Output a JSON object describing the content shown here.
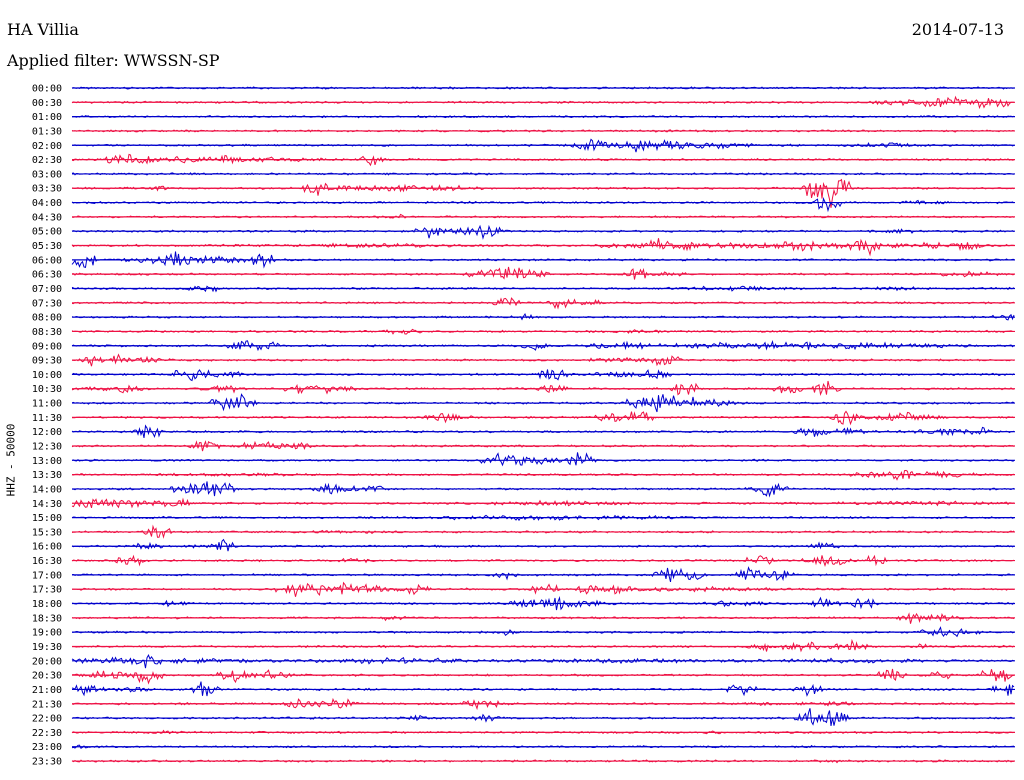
{
  "header": {
    "station": "HA Villia",
    "date": "2014-07-13",
    "filter": "Applied filter: WWSSN-SP"
  },
  "chart_data": {
    "type": "line",
    "title": "HA Villia",
    "ylabel": "HHZ - 50000",
    "colors": {
      "even_rows": "#0000cc",
      "odd_rows": "#ee1144"
    },
    "grid": false,
    "rows": [
      {
        "time": "00:00",
        "bursts": []
      },
      {
        "time": "00:30",
        "bursts": [
          [
            0.86,
            0.01,
            4
          ],
          [
            0.93,
            0.06,
            7
          ],
          [
            0.97,
            0.02,
            9
          ]
        ]
      },
      {
        "time": "01:00",
        "bursts": []
      },
      {
        "time": "01:30",
        "bursts": []
      },
      {
        "time": "02:00",
        "bursts": [
          [
            0.55,
            0.01,
            9
          ],
          [
            0.57,
            0.05,
            5
          ],
          [
            0.6,
            0.01,
            10
          ],
          [
            0.63,
            0.01,
            9
          ],
          [
            0.66,
            0.06,
            5
          ],
          [
            0.86,
            0.05,
            3
          ]
        ]
      },
      {
        "time": "02:30",
        "bursts": [
          [
            0.06,
            0.02,
            8
          ],
          [
            0.11,
            0.08,
            4
          ],
          [
            0.16,
            0.02,
            6
          ],
          [
            0.2,
            0.1,
            3
          ],
          [
            0.32,
            0.01,
            7
          ]
        ]
      },
      {
        "time": "03:00",
        "bursts": []
      },
      {
        "time": "03:30",
        "bursts": [
          [
            0.09,
            0.01,
            5
          ],
          [
            0.26,
            0.01,
            10
          ],
          [
            0.3,
            0.04,
            4
          ],
          [
            0.35,
            0.01,
            8
          ],
          [
            0.4,
            0.03,
            4
          ],
          [
            0.8,
            0.02,
            25
          ]
        ]
      },
      {
        "time": "04:00",
        "bursts": [
          [
            0.8,
            0.01,
            12
          ],
          [
            0.9,
            0.03,
            3
          ]
        ]
      },
      {
        "time": "04:30",
        "bursts": [
          [
            0.34,
            0.01,
            4
          ]
        ]
      },
      {
        "time": "05:00",
        "bursts": [
          [
            0.38,
            0.01,
            8
          ],
          [
            0.42,
            0.04,
            5
          ],
          [
            0.44,
            0.01,
            10
          ],
          [
            0.88,
            0.03,
            3
          ]
        ]
      },
      {
        "time": "05:30",
        "bursts": [
          [
            0.3,
            0.15,
            3
          ],
          [
            0.62,
            0.01,
            9
          ],
          [
            0.66,
            0.1,
            5
          ],
          [
            0.77,
            0.06,
            7
          ],
          [
            0.84,
            0.01,
            14
          ],
          [
            0.9,
            0.06,
            5
          ],
          [
            0.95,
            0.01,
            8
          ]
        ]
      },
      {
        "time": "06:00",
        "bursts": [
          [
            0.01,
            0.01,
            12
          ],
          [
            0.11,
            0.01,
            14
          ],
          [
            0.13,
            0.07,
            6
          ],
          [
            0.2,
            0.01,
            10
          ]
        ]
      },
      {
        "time": "06:30",
        "bursts": [
          [
            0.46,
            0.04,
            10
          ],
          [
            0.6,
            0.01,
            8
          ],
          [
            0.63,
            0.03,
            3
          ],
          [
            0.95,
            0.03,
            4
          ]
        ]
      },
      {
        "time": "07:00",
        "bursts": [
          [
            0.14,
            0.01,
            6
          ],
          [
            0.7,
            0.08,
            3
          ],
          [
            0.87,
            0.03,
            3
          ]
        ]
      },
      {
        "time": "07:30",
        "bursts": [
          [
            0.46,
            0.01,
            8
          ],
          [
            0.52,
            0.01,
            8
          ],
          [
            0.55,
            0.01,
            5
          ]
        ]
      },
      {
        "time": "08:00",
        "bursts": [
          [
            0.48,
            0.01,
            4
          ],
          [
            0.99,
            0.01,
            4
          ]
        ]
      },
      {
        "time": "08:30",
        "bursts": [
          [
            0.35,
            0.02,
            4
          ],
          [
            0.6,
            0.02,
            3
          ]
        ]
      },
      {
        "time": "09:00",
        "bursts": [
          [
            0.18,
            0.01,
            9
          ],
          [
            0.2,
            0.02,
            7
          ],
          [
            0.49,
            0.01,
            7
          ],
          [
            0.56,
            0.02,
            4
          ],
          [
            0.59,
            0.01,
            7
          ],
          [
            0.77,
            0.18,
            5
          ]
        ]
      },
      {
        "time": "09:30",
        "bursts": [
          [
            0.02,
            0.01,
            7
          ],
          [
            0.05,
            0.01,
            6
          ],
          [
            0.08,
            0.02,
            4
          ],
          [
            0.59,
            0.04,
            4
          ],
          [
            0.63,
            0.01,
            10
          ]
        ]
      },
      {
        "time": "10:00",
        "bursts": [
          [
            0.13,
            0.02,
            8
          ],
          [
            0.17,
            0.01,
            4
          ],
          [
            0.51,
            0.01,
            10
          ],
          [
            0.59,
            0.04,
            4
          ],
          [
            0.62,
            0.01,
            7
          ]
        ]
      },
      {
        "time": "10:30",
        "bursts": [
          [
            0.01,
            0.06,
            3
          ],
          [
            0.06,
            0.01,
            7
          ],
          [
            0.16,
            0.02,
            5
          ],
          [
            0.24,
            0.01,
            6
          ],
          [
            0.27,
            0.03,
            5
          ],
          [
            0.51,
            0.01,
            6
          ],
          [
            0.65,
            0.01,
            9
          ],
          [
            0.76,
            0.01,
            8
          ],
          [
            0.8,
            0.01,
            10
          ]
        ]
      },
      {
        "time": "11:00",
        "bursts": [
          [
            0.16,
            0.01,
            10
          ],
          [
            0.18,
            0.01,
            12
          ],
          [
            0.63,
            0.04,
            12
          ],
          [
            0.68,
            0.03,
            4
          ]
        ]
      },
      {
        "time": "11:30",
        "bursts": [
          [
            0.4,
            0.02,
            6
          ],
          [
            0.57,
            0.01,
            8
          ],
          [
            0.6,
            0.01,
            9
          ],
          [
            0.82,
            0.01,
            10
          ],
          [
            0.88,
            0.04,
            6
          ]
        ]
      },
      {
        "time": "12:00",
        "bursts": [
          [
            0.08,
            0.01,
            10
          ],
          [
            0.79,
            0.02,
            6
          ],
          [
            0.82,
            0.05,
            4
          ],
          [
            0.92,
            0.04,
            5
          ],
          [
            0.96,
            0.01,
            8
          ]
        ]
      },
      {
        "time": "12:30",
        "bursts": [
          [
            0.14,
            0.01,
            9
          ],
          [
            0.2,
            0.03,
            5
          ],
          [
            0.24,
            0.01,
            5
          ]
        ]
      },
      {
        "time": "13:00",
        "bursts": [
          [
            0.45,
            0.01,
            10
          ],
          [
            0.47,
            0.01,
            8
          ],
          [
            0.49,
            0.05,
            5
          ],
          [
            0.54,
            0.01,
            10
          ]
        ]
      },
      {
        "time": "13:30",
        "bursts": [
          [
            0.17,
            0.12,
            2
          ],
          [
            0.85,
            0.02,
            5
          ],
          [
            0.88,
            0.01,
            9
          ],
          [
            0.92,
            0.04,
            4
          ]
        ]
      },
      {
        "time": "14:00",
        "bursts": [
          [
            0.14,
            0.03,
            12
          ],
          [
            0.27,
            0.01,
            9
          ],
          [
            0.29,
            0.04,
            4
          ],
          [
            0.32,
            0.01,
            7
          ],
          [
            0.74,
            0.02,
            8
          ]
        ]
      },
      {
        "time": "14:30",
        "bursts": [
          [
            0.01,
            0.1,
            7
          ],
          [
            0.11,
            0.01,
            8
          ],
          [
            0.51,
            0.1,
            3
          ],
          [
            0.9,
            0.1,
            3
          ]
        ]
      },
      {
        "time": "15:00",
        "bursts": [
          [
            0.5,
            0.2,
            3
          ]
        ]
      },
      {
        "time": "15:30",
        "bursts": [
          [
            0.09,
            0.01,
            10
          ],
          [
            0.28,
            0.1,
            2
          ]
        ]
      },
      {
        "time": "16:00",
        "bursts": [
          [
            0.08,
            0.01,
            5
          ],
          [
            0.13,
            0.02,
            3
          ],
          [
            0.16,
            0.01,
            8
          ],
          [
            0.8,
            0.01,
            6
          ]
        ]
      },
      {
        "time": "16:30",
        "bursts": [
          [
            0.06,
            0.01,
            10
          ],
          [
            0.3,
            0.02,
            3
          ],
          [
            0.73,
            0.01,
            9
          ],
          [
            0.8,
            0.02,
            7
          ],
          [
            0.85,
            0.01,
            8
          ]
        ]
      },
      {
        "time": "17:00",
        "bursts": [
          [
            0.46,
            0.01,
            5
          ],
          [
            0.63,
            0.01,
            10
          ],
          [
            0.65,
            0.02,
            10
          ],
          [
            0.72,
            0.01,
            10
          ],
          [
            0.75,
            0.01,
            8
          ]
        ]
      },
      {
        "time": "17:30",
        "bursts": [
          [
            0.24,
            0.01,
            9
          ],
          [
            0.28,
            0.06,
            8
          ],
          [
            0.36,
            0.02,
            6
          ],
          [
            0.5,
            0.01,
            9
          ],
          [
            0.55,
            0.01,
            7
          ],
          [
            0.58,
            0.01,
            6
          ],
          [
            0.66,
            0.12,
            3
          ]
        ]
      },
      {
        "time": "18:00",
        "bursts": [
          [
            0.11,
            0.01,
            5
          ],
          [
            0.51,
            0.01,
            10
          ],
          [
            0.52,
            0.05,
            7
          ],
          [
            0.7,
            0.03,
            5
          ],
          [
            0.8,
            0.01,
            9
          ],
          [
            0.84,
            0.01,
            8
          ]
        ]
      },
      {
        "time": "18:30",
        "bursts": [
          [
            0.34,
            0.01,
            4
          ],
          [
            0.89,
            0.01,
            8
          ],
          [
            0.92,
            0.02,
            5
          ]
        ]
      },
      {
        "time": "19:00",
        "bursts": [
          [
            0.46,
            0.01,
            4
          ],
          [
            0.93,
            0.03,
            6
          ]
        ]
      },
      {
        "time": "19:30",
        "bursts": [
          [
            0.73,
            0.01,
            7
          ],
          [
            0.78,
            0.04,
            6
          ],
          [
            0.83,
            0.01,
            8
          ],
          [
            0.9,
            0.01,
            4
          ]
        ]
      },
      {
        "time": "20:00",
        "bursts": [
          [
            0.04,
            0.2,
            4
          ],
          [
            0.08,
            0.01,
            10
          ],
          [
            0.34,
            0.1,
            4
          ],
          [
            0.56,
            0.15,
            3
          ],
          [
            0.8,
            0.15,
            3
          ]
        ]
      },
      {
        "time": "20:30",
        "bursts": [
          [
            0.04,
            0.03,
            6
          ],
          [
            0.08,
            0.01,
            10
          ],
          [
            0.17,
            0.01,
            11
          ],
          [
            0.21,
            0.02,
            6
          ],
          [
            0.87,
            0.01,
            9
          ],
          [
            0.92,
            0.01,
            6
          ],
          [
            0.98,
            0.01,
            12
          ]
        ]
      },
      {
        "time": "21:00",
        "bursts": [
          [
            0.01,
            0.02,
            7
          ],
          [
            0.06,
            0.02,
            5
          ],
          [
            0.14,
            0.01,
            11
          ],
          [
            0.71,
            0.01,
            8
          ],
          [
            0.78,
            0.01,
            8
          ],
          [
            0.99,
            0.01,
            8
          ]
        ]
      },
      {
        "time": "21:30",
        "bursts": [
          [
            0.24,
            0.01,
            9
          ],
          [
            0.28,
            0.02,
            7
          ],
          [
            0.43,
            0.01,
            9
          ],
          [
            0.45,
            0.02,
            4
          ],
          [
            0.73,
            0.02,
            3
          ],
          [
            0.8,
            0.03,
            3
          ]
        ]
      },
      {
        "time": "22:00",
        "bursts": [
          [
            0.37,
            0.01,
            4
          ],
          [
            0.44,
            0.01,
            6
          ],
          [
            0.78,
            0.01,
            12
          ],
          [
            0.81,
            0.01,
            12
          ]
        ]
      },
      {
        "time": "22:30",
        "bursts": [
          [
            0.1,
            0.02,
            2
          ],
          [
            0.68,
            0.02,
            2
          ]
        ]
      },
      {
        "time": "23:00",
        "bursts": [
          [
            0.01,
            0.01,
            3
          ]
        ]
      },
      {
        "time": "23:30",
        "bursts": [
          [
            0.8,
            0.01,
            3
          ]
        ]
      }
    ]
  }
}
